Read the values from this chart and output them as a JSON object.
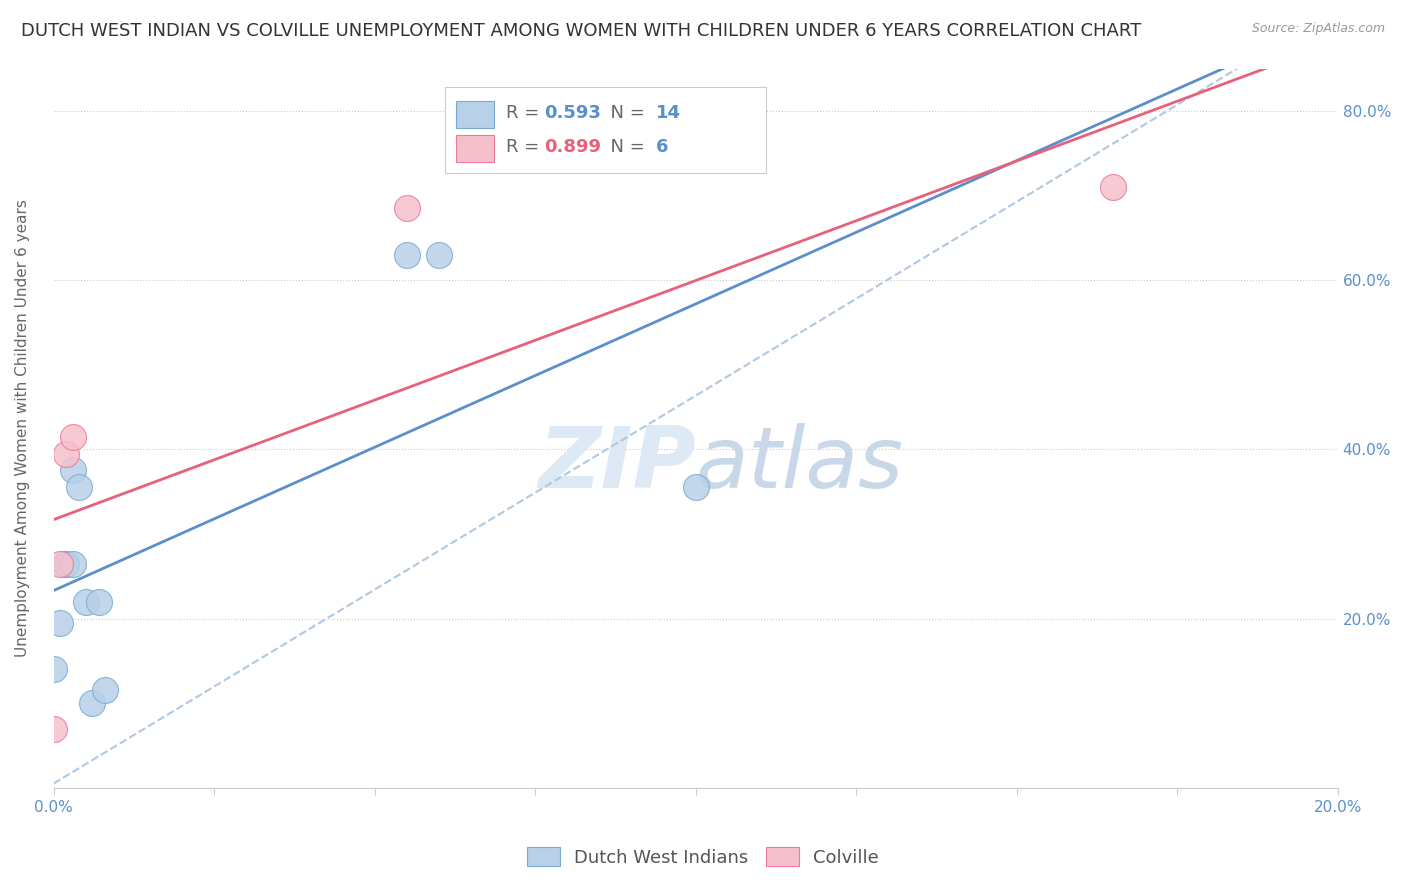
{
  "title": "DUTCH WEST INDIAN VS COLVILLE UNEMPLOYMENT AMONG WOMEN WITH CHILDREN UNDER 6 YEARS CORRELATION CHART",
  "source": "Source: ZipAtlas.com",
  "ylabel": "Unemployment Among Women with Children Under 6 years",
  "xlim": [
    0.0,
    0.2
  ],
  "ylim": [
    0.0,
    0.85
  ],
  "yticks": [
    0.0,
    0.2,
    0.4,
    0.6,
    0.8
  ],
  "ytick_labels": [
    "",
    "20.0%",
    "40.0%",
    "60.0%",
    "80.0%"
  ],
  "xticks": [
    0.0,
    0.025,
    0.05,
    0.075,
    0.1,
    0.125,
    0.15,
    0.175,
    0.2
  ],
  "dutch_x": [
    0.0,
    0.001,
    0.002,
    0.002,
    0.003,
    0.003,
    0.004,
    0.005,
    0.006,
    0.007,
    0.008,
    0.055,
    0.06,
    0.1
  ],
  "dutch_y": [
    0.14,
    0.195,
    0.265,
    0.265,
    0.375,
    0.265,
    0.355,
    0.22,
    0.1,
    0.22,
    0.115,
    0.63,
    0.63,
    0.355
  ],
  "colville_x": [
    0.0,
    0.001,
    0.002,
    0.003,
    0.055,
    0.165
  ],
  "colville_y": [
    0.07,
    0.265,
    0.395,
    0.415,
    0.685,
    0.71
  ],
  "dutch_R": "0.593",
  "dutch_N": "14",
  "colville_R": "0.899",
  "colville_N": "6",
  "dutch_scatter_color": "#b8d0e8",
  "dutch_scatter_edge": "#7aabcf",
  "colville_scatter_color": "#f5c0cc",
  "colville_scatter_edge": "#e87a9a",
  "dutch_line_color": "#5b8fcc",
  "colville_line_color": "#e8607a",
  "dashed_line_color": "#b0c8e0",
  "legend_R_dutch_color": "#5b8fcc",
  "legend_R_colville_color": "#e8607a",
  "legend_N_color": "#5b8fcc",
  "background_color": "#ffffff",
  "watermark_color": "#ddeaf5",
  "title_fontsize": 13,
  "axis_label_fontsize": 11,
  "tick_fontsize": 11,
  "legend_fontsize": 13
}
